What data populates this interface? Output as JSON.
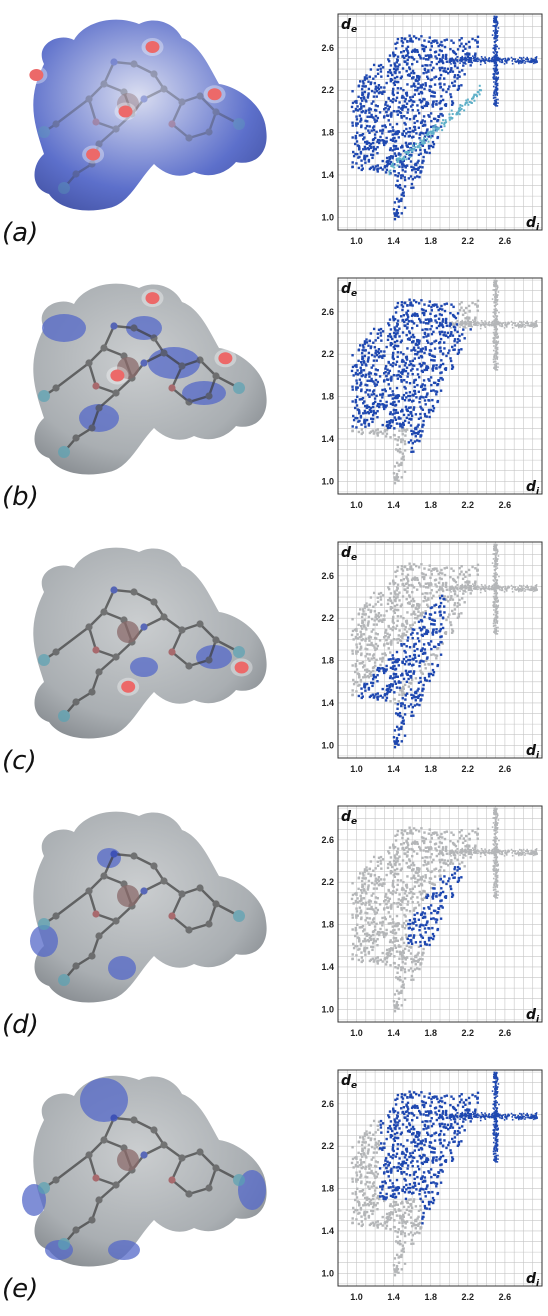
{
  "panels": [
    {
      "label": "(a)",
      "mode": "full",
      "spots": [
        [
          0.55,
          0.2
        ],
        [
          0.45,
          0.5
        ],
        [
          0.78,
          0.42
        ],
        [
          0.12,
          0.33
        ],
        [
          0.33,
          0.7
        ]
      ]
    },
    {
      "label": "(b)",
      "mode": "partial",
      "spots": [
        [
          0.55,
          0.14
        ],
        [
          0.42,
          0.5
        ],
        [
          0.82,
          0.42
        ]
      ]
    },
    {
      "label": "(c)",
      "mode": "wings",
      "spots": [
        [
          0.46,
          0.72
        ],
        [
          0.88,
          0.63
        ]
      ]
    },
    {
      "label": "(d)",
      "mode": "center",
      "spots": []
    },
    {
      "label": "(e)",
      "mode": "block",
      "spots": []
    }
  ],
  "chart_data": [
    {
      "type": "scatter",
      "xlabel": "d_i",
      "ylabel": "d_e",
      "xlim": [
        0.8,
        3.0
      ],
      "ylim": [
        0.88,
        2.92
      ],
      "xticks": [
        "1.0",
        "1.4",
        "1.8",
        "2.2",
        "2.6"
      ],
      "yticks": [
        "1.0",
        "1.4",
        "1.8",
        "2.2",
        "2.6"
      ],
      "grid": true,
      "highlight": "full"
    },
    {
      "type": "scatter",
      "xlabel": "d_i",
      "ylabel": "d_e",
      "xlim": [
        0.8,
        3.0
      ],
      "ylim": [
        0.88,
        2.92
      ],
      "xticks": [
        "1.0",
        "1.4",
        "1.8",
        "2.2",
        "2.6"
      ],
      "yticks": [
        "1.0",
        "1.4",
        "1.8",
        "2.2",
        "2.6"
      ],
      "grid": true,
      "highlight": "partial"
    },
    {
      "type": "scatter",
      "xlabel": "d_i",
      "ylabel": "d_e",
      "xlim": [
        0.8,
        3.0
      ],
      "ylim": [
        0.88,
        2.92
      ],
      "xticks": [
        "1.0",
        "1.4",
        "1.8",
        "2.2",
        "2.6"
      ],
      "yticks": [
        "1.0",
        "1.4",
        "1.8",
        "2.2",
        "2.6"
      ],
      "grid": true,
      "highlight": "wings"
    },
    {
      "type": "scatter",
      "xlabel": "d_i",
      "ylabel": "d_e",
      "xlim": [
        0.8,
        3.0
      ],
      "ylim": [
        0.88,
        2.92
      ],
      "xticks": [
        "1.0",
        "1.4",
        "1.8",
        "2.2",
        "2.6"
      ],
      "yticks": [
        "1.0",
        "1.4",
        "1.8",
        "2.2",
        "2.6"
      ],
      "grid": true,
      "highlight": "center"
    },
    {
      "type": "scatter",
      "xlabel": "d_i",
      "ylabel": "d_e",
      "xlim": [
        0.8,
        3.0
      ],
      "ylim": [
        0.88,
        2.92
      ],
      "xticks": [
        "1.0",
        "1.4",
        "1.8",
        "2.2",
        "2.6"
      ],
      "yticks": [
        "1.0",
        "1.4",
        "1.8",
        "2.2",
        "2.6"
      ],
      "grid": true,
      "highlight": "block"
    }
  ],
  "colors": {
    "highlight": "#1f48b0",
    "background_points": "#b4b6b8",
    "grid": "#c6c6c6",
    "surface": "#a5aaae",
    "surface_blue": "#5468c8",
    "hot_spot": "#e21a1a"
  }
}
